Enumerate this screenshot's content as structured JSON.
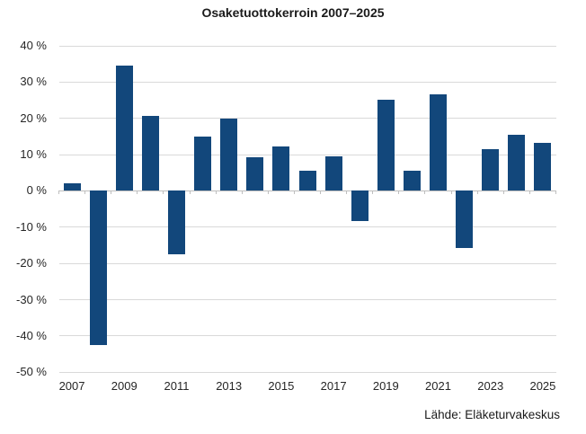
{
  "colors": {
    "bar": "#12477B",
    "gridline": "#D9D9D9",
    "axis_line": "#BFBFBF",
    "label_text": "#262626",
    "title_text": "#1A1A1A",
    "background": "#FFFFFF"
  },
  "chart_data": {
    "type": "bar",
    "title": "Osaketuottokerroin 2007–2025",
    "source": "Lähde: Eläketurvakeskus",
    "categories": [
      2007,
      2008,
      2009,
      2010,
      2011,
      2012,
      2013,
      2014,
      2015,
      2016,
      2017,
      2018,
      2019,
      2020,
      2021,
      2022,
      2023,
      2024,
      2025
    ],
    "values": [
      2.0,
      -42.5,
      34.5,
      20.6,
      -17.5,
      15.0,
      19.9,
      9.4,
      12.2,
      5.6,
      9.5,
      -8.3,
      25.2,
      5.5,
      26.6,
      -15.8,
      11.6,
      15.4,
      13.3
    ],
    "unit": "%",
    "ylim": [
      -50,
      40
    ],
    "y_tick_step": 10,
    "y_tick_labels": [
      "40 %",
      "30 %",
      "20 %",
      "10 %",
      "0 %",
      "-10 %",
      "-20 %",
      "-30 %",
      "-40 %",
      "-50 %"
    ],
    "x_tick_labels": [
      "2007",
      "2009",
      "2011",
      "2013",
      "2015",
      "2017",
      "2019",
      "2021",
      "2023",
      "2025"
    ],
    "grid": "horizontal",
    "legend": "none",
    "bar_color": "#12477B"
  }
}
